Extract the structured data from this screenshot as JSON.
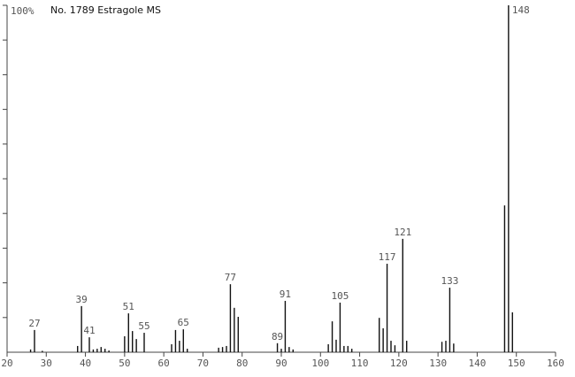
{
  "chart_data": {
    "type": "stem",
    "title": "No. 1789 Estragole MS",
    "color": "#111111",
    "x": [
      26,
      27,
      29,
      38,
      39,
      41,
      42,
      43,
      44,
      45,
      46,
      50,
      51,
      52,
      53,
      55,
      62,
      63,
      64,
      65,
      66,
      74,
      75,
      76,
      77,
      78,
      79,
      89,
      90,
      91,
      92,
      93,
      102,
      103,
      104,
      105,
      106,
      107,
      108,
      115,
      116,
      117,
      118,
      119,
      121,
      122,
      131,
      132,
      133,
      134,
      147,
      148,
      149
    ],
    "values": [
      0.8,
      6.4,
      0.4,
      1.8,
      13.3,
      4.3,
      0.8,
      1,
      1.5,
      1,
      0.5,
      4.6,
      11.2,
      6.1,
      3.8,
      5.6,
      2.3,
      6.4,
      3.3,
      6.6,
      1,
      1.3,
      1.5,
      1.8,
      19.6,
      12.8,
      10.2,
      2.6,
      1,
      14.8,
      1.5,
      0.8,
      2.3,
      8.9,
      3.6,
      14.3,
      1.8,
      1.8,
      1,
      9.9,
      6.9,
      25.5,
      3.3,
      2,
      32.7,
      3.3,
      3,
      3.3,
      18.6,
      2.5,
      42.3,
      100,
      11.5
    ],
    "peak_labels": [
      27,
      39,
      41,
      51,
      55,
      65,
      77,
      89,
      91,
      105,
      117,
      121,
      133,
      148
    ],
    "xlim": [
      20,
      160
    ],
    "xticks": [
      20,
      30,
      40,
      50,
      60,
      70,
      80,
      90,
      100,
      110,
      120,
      130,
      140,
      150,
      160
    ],
    "ylim": [
      0,
      100
    ],
    "yticks": [
      {
        "value": 100,
        "label": "100%"
      }
    ],
    "yminorticks": [
      10,
      20,
      30,
      40,
      50,
      60,
      70,
      80,
      90
    ]
  }
}
